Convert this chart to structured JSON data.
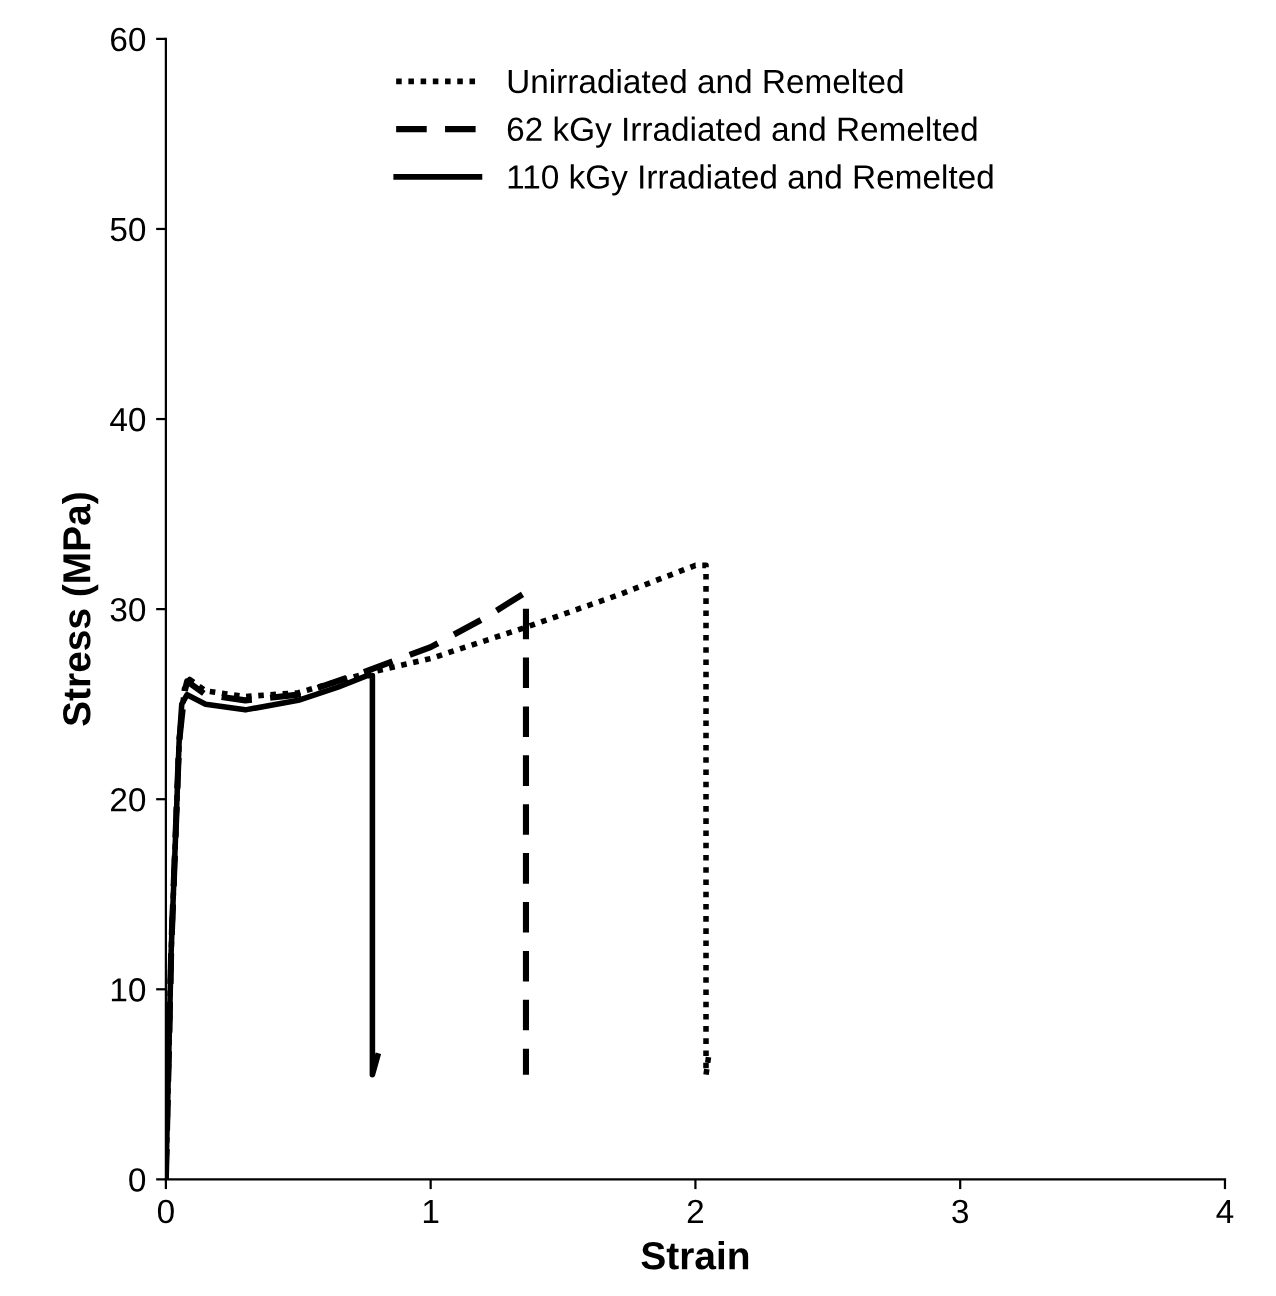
{
  "chart_data": {
    "type": "line",
    "xlabel": "Strain",
    "ylabel": "Stress (MPa)",
    "xlim": [
      0,
      4
    ],
    "ylim": [
      0,
      60
    ],
    "xticks": [
      0,
      1,
      2,
      3,
      4
    ],
    "yticks": [
      0,
      10,
      20,
      30,
      40,
      50,
      60
    ],
    "grid": false,
    "legend": "top",
    "marker": "none",
    "series": [
      {
        "name": "Unirradiated and Remelted",
        "color": "#000000",
        "line_style": "dotted",
        "x": [
          0,
          0.02,
          0.05,
          0.07,
          0.09,
          0.15,
          0.3,
          0.5,
          0.75,
          1.0,
          1.35,
          1.7,
          2.0,
          2.04,
          2.04,
          2.05
        ],
        "values": [
          0,
          12,
          23,
          25.8,
          26.3,
          25.7,
          25.4,
          25.6,
          26.6,
          27.4,
          29,
          30.7,
          32.3,
          32.3,
          5.5,
          6.5
        ]
      },
      {
        "name": "62 kGy Irradiated and Remelted",
        "color": "#000000",
        "line_style": "dashed",
        "x": [
          0,
          0.02,
          0.05,
          0.07,
          0.08,
          0.15,
          0.3,
          0.5,
          0.75,
          1.0,
          1.2,
          1.35,
          1.36,
          1.36
        ],
        "values": [
          0,
          12,
          23,
          25.6,
          26.2,
          25.5,
          25.2,
          25.5,
          26.7,
          28,
          29.5,
          30.8,
          30.8,
          5.5
        ]
      },
      {
        "name": "110 kGy Irradiated and Remelted",
        "color": "#000000",
        "line_style": "solid",
        "x": [
          0,
          0.02,
          0.05,
          0.06,
          0.08,
          0.15,
          0.3,
          0.5,
          0.65,
          0.76,
          0.78,
          0.78,
          0.8
        ],
        "values": [
          0,
          12,
          23,
          25,
          25.5,
          25,
          24.7,
          25.2,
          25.9,
          26.5,
          26.5,
          5.5,
          6.5
        ]
      }
    ]
  }
}
